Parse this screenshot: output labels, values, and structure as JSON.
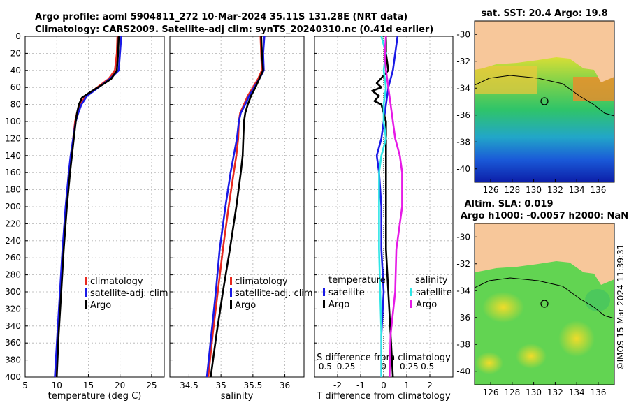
{
  "title_line1": "Argo profile: aoml 5904811_272 10-Mar-2024 35.11S 131.28E (NRT data)",
  "title_line2": "Climatology: CARS2009. Satellite-adj clim: synTS_20240310.nc (0.41d earlier)",
  "stamp": "©IMOS 15-Mar-2024 11:39:31",
  "colors": {
    "climatology": "#e8281e",
    "satellite": "#1a1ae6",
    "argo": "#000000",
    "sat_sal": "#2ee6e6",
    "argo_sal": "#e61ae6",
    "land": "#f7c79a"
  },
  "chart_data": [
    {
      "type": "line",
      "name": "temperature-profile",
      "xlabel": "temperature (deg C)",
      "ylabel": "",
      "xlim": [
        5,
        27
      ],
      "ylim": [
        400,
        0
      ],
      "xticks": [
        5,
        10,
        15,
        20,
        25
      ],
      "yticks": [
        0,
        20,
        40,
        60,
        80,
        100,
        120,
        140,
        160,
        180,
        200,
        220,
        240,
        260,
        280,
        300,
        320,
        340,
        360,
        380,
        400
      ],
      "legend": [
        "climatology",
        "satellite-adj. clim",
        "Argo"
      ],
      "series": [
        {
          "name": "climatology",
          "depth": [
            0,
            20,
            40,
            50,
            60,
            70,
            80,
            90,
            100,
            120,
            140,
            160,
            200,
            250,
            300,
            350,
            400
          ],
          "values": [
            19.6,
            19.5,
            19.2,
            18.2,
            16.4,
            14.6,
            13.7,
            13.2,
            12.9,
            12.6,
            12.3,
            12.0,
            11.5,
            11.0,
            10.6,
            10.2,
            9.8
          ]
        },
        {
          "name": "satellite-adj. clim",
          "depth": [
            0,
            20,
            40,
            50,
            60,
            70,
            80,
            90,
            100,
            120,
            140,
            160,
            200,
            250,
            300,
            350,
            400
          ],
          "values": [
            20.2,
            20.0,
            19.8,
            18.4,
            16.6,
            14.8,
            13.9,
            13.4,
            13.0,
            12.6,
            12.2,
            11.9,
            11.4,
            10.9,
            10.5,
            10.1,
            9.7
          ]
        },
        {
          "name": "Argo",
          "depth": [
            0,
            20,
            40,
            50,
            56,
            60,
            66,
            72,
            80,
            90,
            100,
            120,
            140,
            160,
            200,
            250,
            300,
            350,
            400
          ],
          "values": [
            19.8,
            19.7,
            19.5,
            18.6,
            17.4,
            16.5,
            15.2,
            14.0,
            13.5,
            13.2,
            13.0,
            12.7,
            12.4,
            12.1,
            11.6,
            11.1,
            10.7,
            10.3,
            10.0
          ]
        }
      ]
    },
    {
      "type": "line",
      "name": "salinity-profile",
      "xlabel": "salinity",
      "ylabel": "",
      "xlim": [
        34.2,
        36.3
      ],
      "ylim": [
        400,
        0
      ],
      "xticks": [
        34.5,
        35,
        35.5,
        36
      ],
      "legend": [
        "climatology",
        "satellite-adj. clim",
        "Argo"
      ],
      "series": [
        {
          "name": "climatology",
          "depth": [
            0,
            20,
            40,
            50,
            60,
            70,
            80,
            90,
            100,
            120,
            140,
            160,
            200,
            250,
            300,
            350,
            400
          ],
          "values": [
            35.62,
            35.63,
            35.64,
            35.58,
            35.5,
            35.42,
            35.36,
            35.3,
            35.28,
            35.27,
            35.24,
            35.2,
            35.12,
            35.03,
            34.95,
            34.87,
            34.8
          ]
        },
        {
          "name": "satellite-adj. clim",
          "depth": [
            0,
            20,
            40,
            50,
            60,
            70,
            80,
            90,
            100,
            120,
            140,
            160,
            200,
            250,
            300,
            350,
            400
          ],
          "values": [
            35.68,
            35.66,
            35.67,
            35.6,
            35.52,
            35.44,
            35.38,
            35.31,
            35.28,
            35.25,
            35.2,
            35.15,
            35.07,
            34.98,
            34.92,
            34.85,
            34.78
          ]
        },
        {
          "name": "Argo",
          "depth": [
            0,
            20,
            40,
            50,
            60,
            70,
            80,
            90,
            100,
            120,
            140,
            160,
            200,
            250,
            300,
            350,
            400
          ],
          "values": [
            35.63,
            35.64,
            35.66,
            35.6,
            35.54,
            35.47,
            35.42,
            35.38,
            35.36,
            35.35,
            35.34,
            35.31,
            35.24,
            35.14,
            35.03,
            34.93,
            34.84
          ]
        }
      ]
    },
    {
      "type": "line",
      "name": "difference-profile",
      "xlabel": "T difference from climatology",
      "x2label": "S difference from climatology",
      "xlim": [
        -3,
        3
      ],
      "ylim": [
        400,
        0
      ],
      "xticks": [
        -2,
        -1,
        0,
        1,
        2
      ],
      "x2ticks": [
        "-0.5",
        "-0.25",
        "0",
        "0.25",
        "0.5"
      ],
      "legend_headers": [
        "temperature",
        "salinity"
      ],
      "legend": [
        "satellite",
        "Argo",
        "satellite",
        "Argo"
      ],
      "series": [
        {
          "name": "temperature satellite",
          "depth": [
            0,
            20,
            40,
            60,
            80,
            100,
            120,
            140,
            160,
            200,
            250,
            300,
            350,
            400
          ],
          "values": [
            0.6,
            0.5,
            0.4,
            0.2,
            0.1,
            0.0,
            -0.1,
            -0.3,
            -0.2,
            -0.1,
            -0.1,
            0.0,
            -0.1,
            -0.1
          ]
        },
        {
          "name": "temperature Argo",
          "depth": [
            0,
            20,
            40,
            55,
            60,
            64,
            70,
            76,
            80,
            90,
            100,
            120,
            140,
            160,
            200,
            250,
            300,
            350,
            400
          ],
          "values": [
            0.1,
            0.1,
            0.2,
            -0.3,
            -0.1,
            -0.5,
            -0.2,
            -0.4,
            -0.1,
            0.0,
            0.1,
            0.1,
            0.1,
            0.1,
            0.1,
            0.1,
            0.2,
            0.3,
            0.4
          ]
        },
        {
          "name": "salinity satellite",
          "depth": [
            0,
            20,
            40,
            60,
            80,
            100,
            120,
            140,
            160,
            200,
            250,
            300,
            350,
            400
          ],
          "values": [
            -0.02,
            0.02,
            0.0,
            0.02,
            0.0,
            0.0,
            0.02,
            -0.02,
            -0.04,
            -0.04,
            -0.04,
            -0.03,
            -0.02,
            -0.02
          ]
        },
        {
          "name": "salinity Argo",
          "depth": [
            0,
            20,
            40,
            60,
            80,
            100,
            120,
            140,
            160,
            200,
            250,
            300,
            350,
            400
          ],
          "values": [
            0.02,
            0.01,
            0.02,
            0.04,
            0.06,
            0.08,
            0.1,
            0.14,
            0.16,
            0.16,
            0.11,
            0.1,
            0.06,
            0.05
          ]
        }
      ]
    },
    {
      "type": "heatmap",
      "name": "sst-map",
      "title": "sat. SST: 20.4 Argo: 19.8",
      "xticks": [
        126,
        128,
        130,
        132,
        134,
        136
      ],
      "yticks": [
        -30,
        -32,
        -34,
        -36,
        -38,
        -40
      ],
      "xlim": [
        124.5,
        137.5
      ],
      "ylim": [
        -41,
        -29
      ],
      "argo_position": [
        131.28,
        -35.11
      ]
    },
    {
      "type": "heatmap",
      "name": "sla-map",
      "title": "Altim. SLA: 0.019",
      "subtitle": "Argo h1000: -0.0057 h2000: NaN",
      "xticks": [
        126,
        128,
        130,
        132,
        134,
        136
      ],
      "yticks": [
        -30,
        -32,
        -34,
        -36,
        -38,
        -40
      ],
      "xlim": [
        124.5,
        137.5
      ],
      "ylim": [
        -41,
        -29
      ],
      "argo_position": [
        131.28,
        -35.11
      ]
    }
  ]
}
